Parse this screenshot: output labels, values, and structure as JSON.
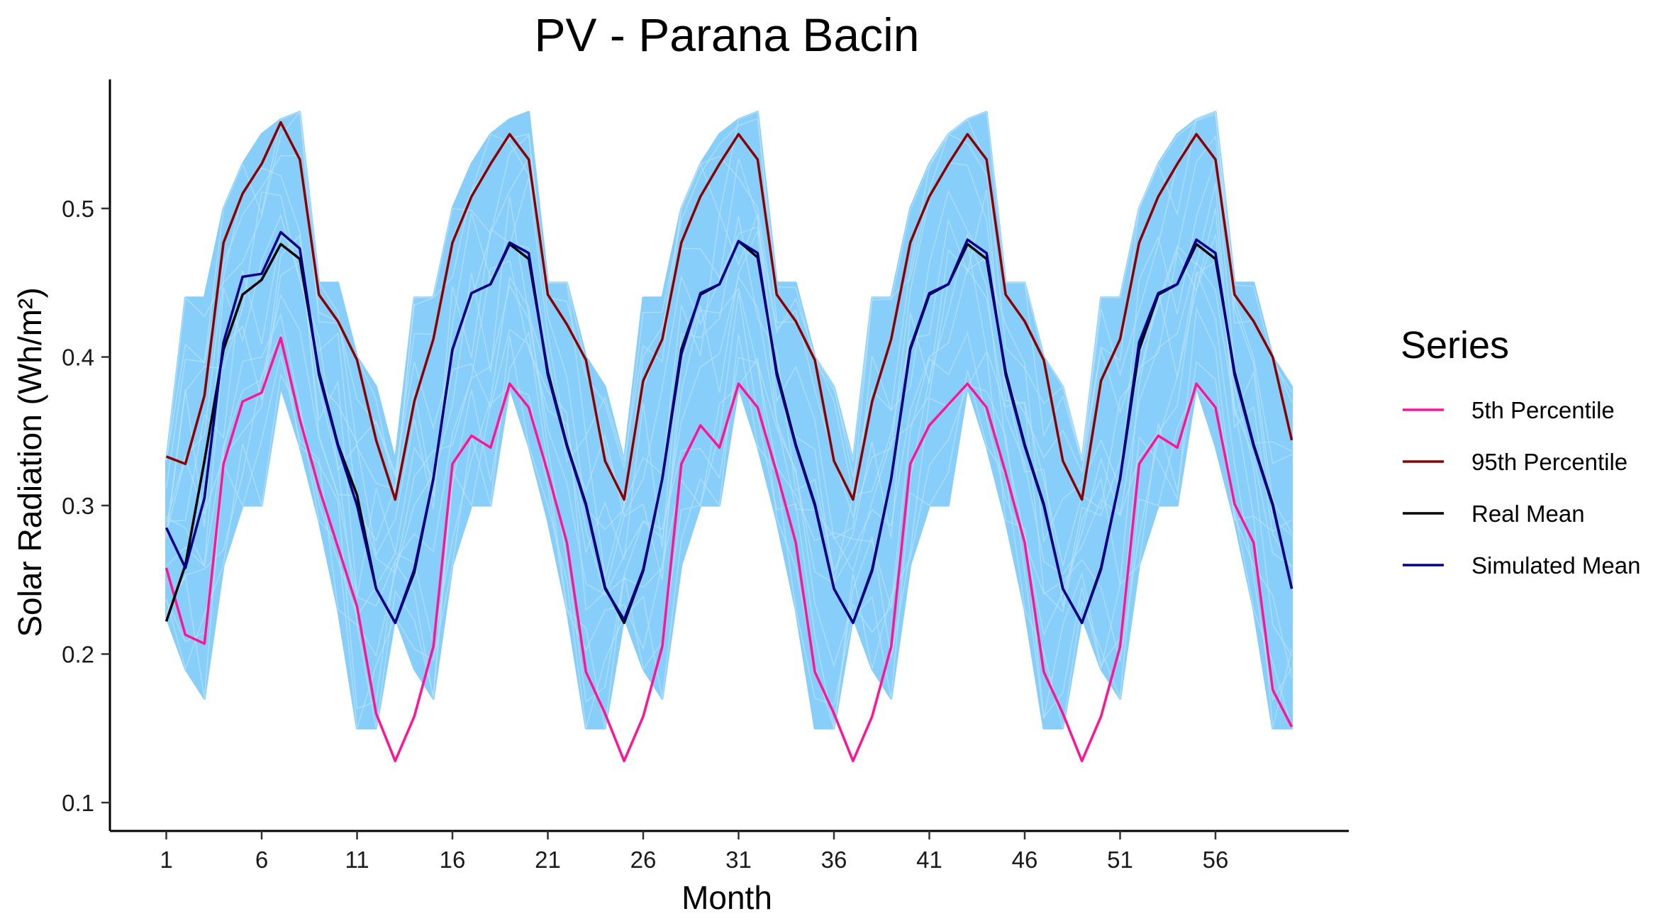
{
  "chart_data": {
    "type": "line",
    "title": "PV - Parana Bacin",
    "xlabel": "Month",
    "ylabel": "Solar Radiation (Wh/m²)",
    "xlim": [
      0,
      61
    ],
    "ylim": [
      0.08,
      0.57
    ],
    "x_ticks": [
      1,
      6,
      11,
      16,
      21,
      26,
      31,
      36,
      41,
      46,
      51,
      56
    ],
    "y_ticks": [
      0.1,
      0.2,
      0.3,
      0.4,
      0.5
    ],
    "y_tick_labels": [
      "0.1",
      "0.2",
      "0.3",
      "0.4",
      "0.5"
    ],
    "grid": false,
    "legend": {
      "title": "Series",
      "position": "right",
      "entries": [
        {
          "label": "5th Percentile",
          "color": "#FF1493"
        },
        {
          "label": "95th Percentile",
          "color": "#8B0000"
        },
        {
          "label": "Real Mean",
          "color": "#000000"
        },
        {
          "label": "Simulated Mean",
          "color": "#00008B"
        }
      ]
    },
    "simulation_band": {
      "color": "#87CEFA",
      "lower_envelope_12": [
        0.225,
        0.19,
        0.17,
        0.26,
        0.3,
        0.3,
        0.38,
        0.34,
        0.29,
        0.23,
        0.15,
        0.15
      ],
      "upper_envelope_12": [
        0.33,
        0.44,
        0.44,
        0.5,
        0.53,
        0.55,
        0.56,
        0.565,
        0.45,
        0.45,
        0.4,
        0.38
      ]
    },
    "x": [
      1,
      2,
      3,
      4,
      5,
      6,
      7,
      8,
      9,
      10,
      11,
      12,
      13,
      14,
      15,
      16,
      17,
      18,
      19,
      20,
      21,
      22,
      23,
      24,
      25,
      26,
      27,
      28,
      29,
      30,
      31,
      32,
      33,
      34,
      35,
      36,
      37,
      38,
      39,
      40,
      41,
      42,
      43,
      44,
      45,
      46,
      47,
      48,
      49,
      50,
      51,
      52,
      53,
      54,
      55,
      56,
      57,
      58,
      59,
      60
    ],
    "series": [
      {
        "name": "5th Percentile",
        "color": "#FF1493",
        "values": [
          0.258,
          0.213,
          0.207,
          0.328,
          0.37,
          0.376,
          0.413,
          0.358,
          0.312,
          0.272,
          0.232,
          0.16,
          0.128,
          0.158,
          0.205,
          0.328,
          0.347,
          0.339,
          0.382,
          0.366,
          0.322,
          0.275,
          0.188,
          0.16,
          0.128,
          0.158,
          0.205,
          0.328,
          0.354,
          0.339,
          0.382,
          0.366,
          0.322,
          0.275,
          0.188,
          0.16,
          0.128,
          0.158,
          0.205,
          0.328,
          0.354,
          0.368,
          0.382,
          0.366,
          0.322,
          0.275,
          0.188,
          0.16,
          0.128,
          0.158,
          0.205,
          0.328,
          0.347,
          0.339,
          0.382,
          0.366,
          0.301,
          0.275,
          0.176,
          0.151
        ]
      },
      {
        "name": "95th Percentile",
        "color": "#8B0000",
        "values": [
          0.333,
          0.328,
          0.374,
          0.477,
          0.51,
          0.53,
          0.558,
          0.533,
          0.442,
          0.424,
          0.398,
          0.344,
          0.304,
          0.37,
          0.412,
          0.477,
          0.508,
          0.53,
          0.55,
          0.533,
          0.442,
          0.422,
          0.398,
          0.33,
          0.304,
          0.384,
          0.412,
          0.477,
          0.508,
          0.53,
          0.55,
          0.533,
          0.442,
          0.424,
          0.398,
          0.33,
          0.304,
          0.37,
          0.412,
          0.477,
          0.508,
          0.53,
          0.55,
          0.533,
          0.442,
          0.424,
          0.398,
          0.33,
          0.304,
          0.384,
          0.412,
          0.477,
          0.508,
          0.53,
          0.55,
          0.533,
          0.442,
          0.424,
          0.4,
          0.344
        ]
      },
      {
        "name": "Real Mean",
        "color": "#000000",
        "values": [
          0.222,
          0.26,
          0.33,
          0.405,
          0.442,
          0.452,
          0.476,
          0.466,
          0.39,
          0.341,
          0.307,
          0.244,
          0.221,
          0.255,
          0.318,
          0.405,
          0.443,
          0.449,
          0.476,
          0.466,
          0.39,
          0.341,
          0.301,
          0.245,
          0.221,
          0.256,
          0.318,
          0.405,
          0.442,
          0.449,
          0.478,
          0.467,
          0.39,
          0.341,
          0.301,
          0.244,
          0.221,
          0.256,
          0.318,
          0.405,
          0.442,
          0.449,
          0.476,
          0.466,
          0.39,
          0.341,
          0.301,
          0.244,
          0.221,
          0.258,
          0.318,
          0.405,
          0.442,
          0.449,
          0.476,
          0.466,
          0.39,
          0.341,
          0.301,
          0.244
        ]
      },
      {
        "name": "Simulated Mean",
        "color": "#00008B",
        "values": [
          0.285,
          0.258,
          0.305,
          0.41,
          0.454,
          0.456,
          0.484,
          0.473,
          0.388,
          0.34,
          0.3,
          0.244,
          0.221,
          0.257,
          0.318,
          0.405,
          0.443,
          0.449,
          0.477,
          0.47,
          0.388,
          0.34,
          0.3,
          0.244,
          0.223,
          0.257,
          0.318,
          0.402,
          0.443,
          0.449,
          0.478,
          0.47,
          0.388,
          0.34,
          0.3,
          0.244,
          0.221,
          0.257,
          0.318,
          0.406,
          0.443,
          0.449,
          0.479,
          0.47,
          0.388,
          0.34,
          0.3,
          0.244,
          0.221,
          0.257,
          0.318,
          0.41,
          0.443,
          0.449,
          0.479,
          0.47,
          0.388,
          0.34,
          0.3,
          0.244
        ]
      }
    ]
  }
}
